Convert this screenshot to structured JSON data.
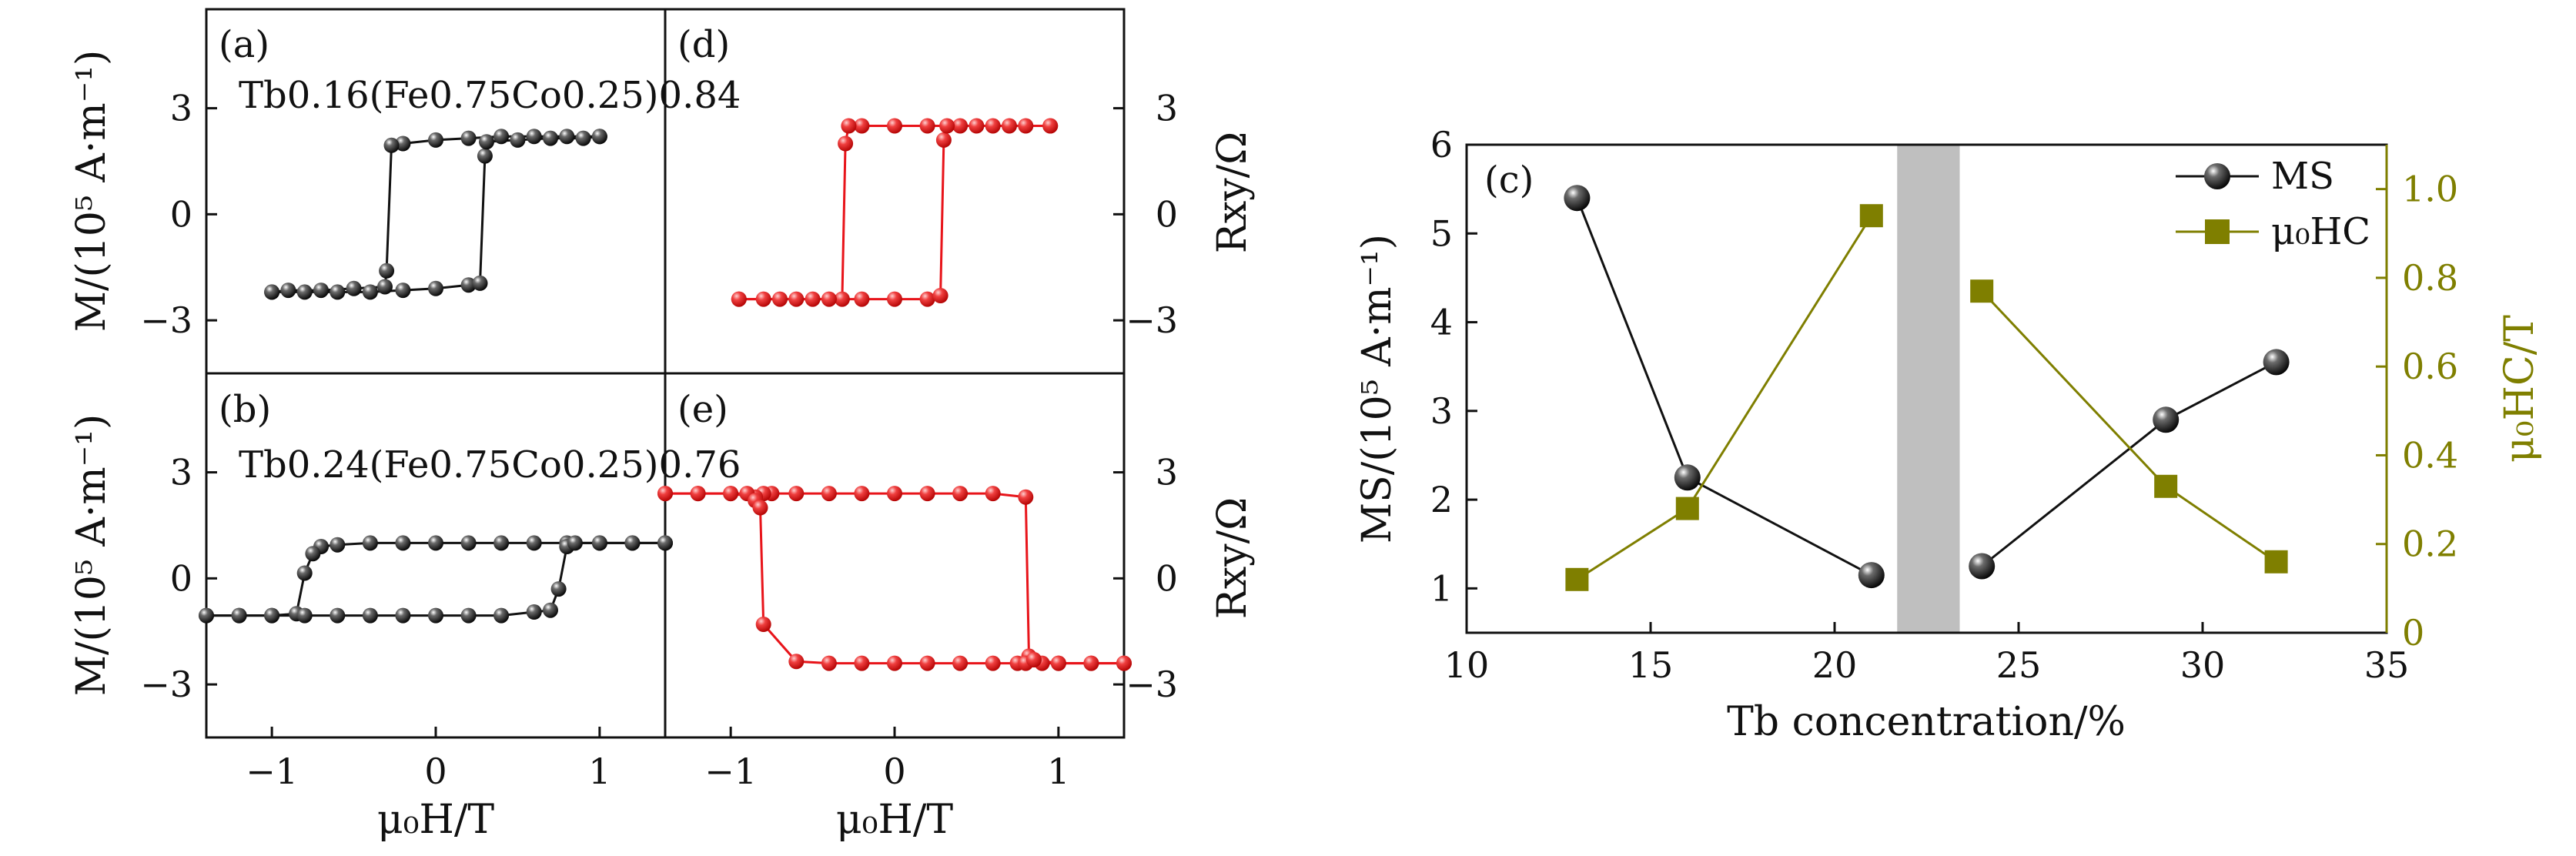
{
  "colors": {
    "black": "#111111",
    "red": "#e8141a",
    "olive": "#7f7f00",
    "band": "#bfbfbf"
  },
  "axis_labels": {
    "m_left": "M/(10⁵ A·m⁻¹)",
    "r_right": "Rxy/Ω",
    "x_bottom": "μ₀H/T",
    "ms_left": "MS/(10⁵ A·m⁻¹)",
    "hc_right": "μ₀HC/T",
    "tb_bottom": "Tb concentration/%"
  },
  "chart_data": [
    {
      "id": "a",
      "type": "line",
      "panel_label": "(a)",
      "composition": "Tb0.16(Fe0.75Co0.25)0.84",
      "xlabel": "μ₀H/T",
      "ylabel": "M/(10⁵ A·m⁻¹)",
      "xlim": [
        -1.4,
        1.4
      ],
      "ylim": [
        -4.5,
        5.8
      ],
      "yticks": [
        -3,
        0,
        3
      ],
      "ytick_labels": [
        "−3",
        "0",
        "3"
      ],
      "series": [
        {
          "name": "descending",
          "color": "#111111",
          "x": [
            1.0,
            0.8,
            0.6,
            0.4,
            0.2,
            0.0,
            -0.2,
            -0.27,
            -0.3,
            -0.31,
            -0.5,
            -0.7,
            -0.9,
            -1.0
          ],
          "y": [
            2.2,
            2.2,
            2.2,
            2.2,
            2.15,
            2.1,
            2.0,
            1.95,
            -1.6,
            -2.05,
            -2.1,
            -2.15,
            -2.15,
            -2.2
          ]
        },
        {
          "name": "ascending",
          "color": "#111111",
          "x": [
            -1.0,
            -0.8,
            -0.6,
            -0.4,
            -0.2,
            0.0,
            0.2,
            0.27,
            0.3,
            0.31,
            0.5,
            0.7,
            0.9,
            1.0
          ],
          "y": [
            -2.2,
            -2.2,
            -2.2,
            -2.2,
            -2.15,
            -2.1,
            -2.0,
            -1.95,
            1.65,
            2.05,
            2.1,
            2.15,
            2.15,
            2.2
          ]
        }
      ]
    },
    {
      "id": "b",
      "type": "line",
      "panel_label": "(b)",
      "composition": "Tb0.24(Fe0.75Co0.25)0.76",
      "xlabel": "μ₀H/T",
      "ylabel": "M/(10⁵ A·m⁻¹)",
      "xlim": [
        -1.4,
        1.4
      ],
      "ylim": [
        -4.5,
        5.8
      ],
      "xticks": [
        -1,
        0,
        1
      ],
      "xtick_labels": [
        "−1",
        "0",
        "1"
      ],
      "yticks": [
        -3,
        0,
        3
      ],
      "ytick_labels": [
        "−3",
        "0",
        "3"
      ],
      "series": [
        {
          "name": "descending",
          "color": "#111111",
          "x": [
            1.4,
            1.2,
            1.0,
            0.8,
            0.6,
            0.4,
            0.2,
            0.0,
            -0.2,
            -0.4,
            -0.6,
            -0.7,
            -0.75,
            -0.8,
            -0.85,
            -1.0,
            -1.2,
            -1.4
          ],
          "y": [
            1.0,
            1.0,
            1.0,
            1.0,
            1.0,
            1.0,
            1.0,
            1.0,
            1.0,
            1.0,
            0.95,
            0.9,
            0.7,
            0.15,
            -1.0,
            -1.05,
            -1.05,
            -1.05
          ]
        },
        {
          "name": "ascending",
          "color": "#111111",
          "x": [
            -1.4,
            -1.2,
            -1.0,
            -0.8,
            -0.6,
            -0.4,
            -0.2,
            0.0,
            0.2,
            0.4,
            0.6,
            0.7,
            0.75,
            0.8,
            0.85,
            1.0,
            1.2,
            1.4
          ],
          "y": [
            -1.05,
            -1.05,
            -1.05,
            -1.05,
            -1.05,
            -1.05,
            -1.05,
            -1.05,
            -1.05,
            -1.05,
            -0.95,
            -0.9,
            -0.3,
            0.9,
            1.0,
            1.0,
            1.0,
            1.0
          ]
        }
      ]
    },
    {
      "id": "d",
      "type": "line",
      "panel_label": "(d)",
      "xlabel": "μ₀H/T",
      "ylabel": "Rxy/Ω",
      "xlim": [
        -1.4,
        1.4
      ],
      "ylim": [
        -4.5,
        5.8
      ],
      "yticks": [
        -3,
        0,
        3
      ],
      "ytick_labels": [
        "−3",
        "0",
        "3"
      ],
      "series": [
        {
          "name": "descending",
          "color": "#e8141a",
          "x": [
            0.95,
            0.8,
            0.6,
            0.4,
            0.2,
            0.0,
            -0.2,
            -0.28,
            -0.3,
            -0.32,
            -0.5,
            -0.7,
            -0.95
          ],
          "y": [
            2.5,
            2.5,
            2.5,
            2.5,
            2.5,
            2.5,
            2.5,
            2.5,
            2.0,
            -2.4,
            -2.4,
            -2.4,
            -2.4
          ]
        },
        {
          "name": "ascending",
          "color": "#e8141a",
          "x": [
            -0.95,
            -0.8,
            -0.6,
            -0.4,
            -0.2,
            0.0,
            0.2,
            0.28,
            0.3,
            0.32,
            0.5,
            0.7,
            0.95
          ],
          "y": [
            -2.4,
            -2.4,
            -2.4,
            -2.4,
            -2.4,
            -2.4,
            -2.4,
            -2.3,
            2.1,
            2.5,
            2.5,
            2.5,
            2.5
          ]
        }
      ]
    },
    {
      "id": "e",
      "type": "line",
      "panel_label": "(e)",
      "xlabel": "μ₀H/T",
      "ylabel": "Rxy/Ω",
      "xlim": [
        -1.4,
        1.4
      ],
      "ylim": [
        -4.5,
        5.8
      ],
      "xticks": [
        -1,
        0,
        1
      ],
      "xtick_labels": [
        "−1",
        "0",
        "1"
      ],
      "yticks": [
        -3,
        0,
        3
      ],
      "ytick_labels": [
        "−3",
        "0",
        "3"
      ],
      "series": [
        {
          "name": "descending",
          "color": "#e8141a",
          "x": [
            1.4,
            1.2,
            1.0,
            0.9,
            0.85,
            0.82,
            0.8,
            0.6,
            0.4,
            0.2,
            0.0,
            -0.2,
            -0.4,
            -0.6,
            -0.75,
            -0.8,
            -0.85,
            -1.0,
            -1.2,
            -1.4
          ],
          "y": [
            -2.4,
            -2.4,
            -2.4,
            -2.4,
            -2.3,
            -2.2,
            2.3,
            2.4,
            2.4,
            2.4,
            2.4,
            2.4,
            2.4,
            2.4,
            2.4,
            2.4,
            2.3,
            2.4,
            2.4,
            2.4
          ]
        },
        {
          "name": "ascending",
          "color": "#e8141a",
          "x": [
            -1.4,
            -1.2,
            -1.0,
            -0.9,
            -0.85,
            -0.82,
            -0.8,
            -0.6,
            -0.4,
            -0.2,
            0.0,
            0.2,
            0.4,
            0.6,
            0.75,
            0.8,
            0.85,
            1.0,
            1.2,
            1.4
          ],
          "y": [
            2.4,
            2.4,
            2.4,
            2.4,
            2.2,
            2.0,
            -1.3,
            -2.35,
            -2.4,
            -2.4,
            -2.4,
            -2.4,
            -2.4,
            -2.4,
            -2.4,
            -2.4,
            -2.3,
            -2.4,
            -2.4,
            -2.4
          ]
        }
      ]
    },
    {
      "id": "c",
      "type": "line",
      "panel_label": "(c)",
      "xlabel": "Tb concentration/%",
      "xlim": [
        10,
        35
      ],
      "xticks": [
        10,
        15,
        20,
        25,
        30,
        35
      ],
      "y_left": {
        "label": "MS/(10⁵ A·m⁻¹)",
        "lim": [
          0.5,
          6
        ],
        "ticks": [
          1,
          2,
          3,
          4,
          5,
          6
        ]
      },
      "y_right": {
        "label": "μ₀HC/T",
        "lim": [
          0,
          1.1
        ],
        "ticks": [
          0,
          0.2,
          0.4,
          0.6,
          0.8,
          1.0
        ],
        "tick_labels": [
          "0",
          "0.2",
          "0.4",
          "0.6",
          "0.8",
          "1.0"
        ]
      },
      "band": {
        "from": 21.7,
        "to": 23.4
      },
      "legend": {
        "position": "top-right",
        "entries": [
          "MS",
          "μ₀HC"
        ]
      },
      "series": [
        {
          "name": "MS",
          "axis": "left",
          "marker": "sphere",
          "color": "#111111",
          "segments": [
            {
              "x": [
                13,
                16,
                21
              ],
              "y": [
                5.4,
                2.25,
                1.15
              ]
            },
            {
              "x": [
                24,
                29,
                32
              ],
              "y": [
                1.25,
                2.9,
                3.55
              ]
            }
          ]
        },
        {
          "name": "μ₀HC",
          "axis": "right",
          "marker": "square",
          "color": "#7f7f00",
          "segments": [
            {
              "x": [
                13,
                16,
                21
              ],
              "y": [
                0.12,
                0.28,
                0.94
              ]
            },
            {
              "x": [
                24,
                29,
                32
              ],
              "y": [
                0.77,
                0.33,
                0.16
              ]
            }
          ]
        }
      ]
    }
  ]
}
